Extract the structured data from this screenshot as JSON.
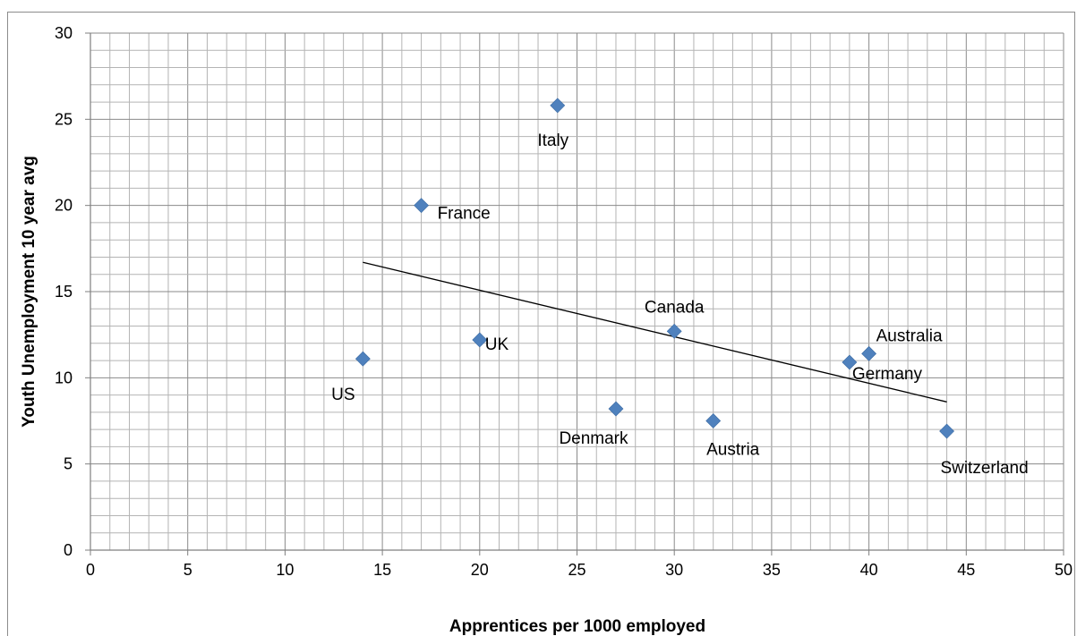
{
  "chart_data": {
    "type": "scatter",
    "title": "",
    "xlabel": "Apprentices per 1000 employed",
    "ylabel": "Youth Unemployment 10 year avg",
    "xlim": [
      0,
      50
    ],
    "ylim": [
      0,
      30
    ],
    "x_major_step": 5,
    "y_major_step": 5,
    "x_minor_step": 1,
    "y_minor_step": 1,
    "grid": true,
    "legend": "none",
    "marker": "diamond",
    "marker_color": "#4f81bd",
    "trendline": {
      "type": "linear",
      "x_start": 14,
      "y_start": 16.7,
      "x_end": 44,
      "y_end": 8.6,
      "color": "#000000"
    },
    "points": [
      {
        "label": "US",
        "x": 14,
        "y": 11.1,
        "label_pos": "below-left"
      },
      {
        "label": "France",
        "x": 17,
        "y": 20.0,
        "label_pos": "right-below"
      },
      {
        "label": "UK",
        "x": 20,
        "y": 12.2,
        "label_pos": "right"
      },
      {
        "label": "Italy",
        "x": 24,
        "y": 25.8,
        "label_pos": "below"
      },
      {
        "label": "Denmark",
        "x": 27,
        "y": 8.2,
        "label_pos": "below-left"
      },
      {
        "label": "Canada",
        "x": 30,
        "y": 12.7,
        "label_pos": "above"
      },
      {
        "label": "Austria",
        "x": 32,
        "y": 7.5,
        "label_pos": "below"
      },
      {
        "label": "Germany",
        "x": 39,
        "y": 10.9,
        "label_pos": "below-right"
      },
      {
        "label": "Australia",
        "x": 40,
        "y": 11.4,
        "label_pos": "above-right"
      },
      {
        "label": "Switzerland",
        "x": 44,
        "y": 6.9,
        "label_pos": "below"
      }
    ]
  }
}
